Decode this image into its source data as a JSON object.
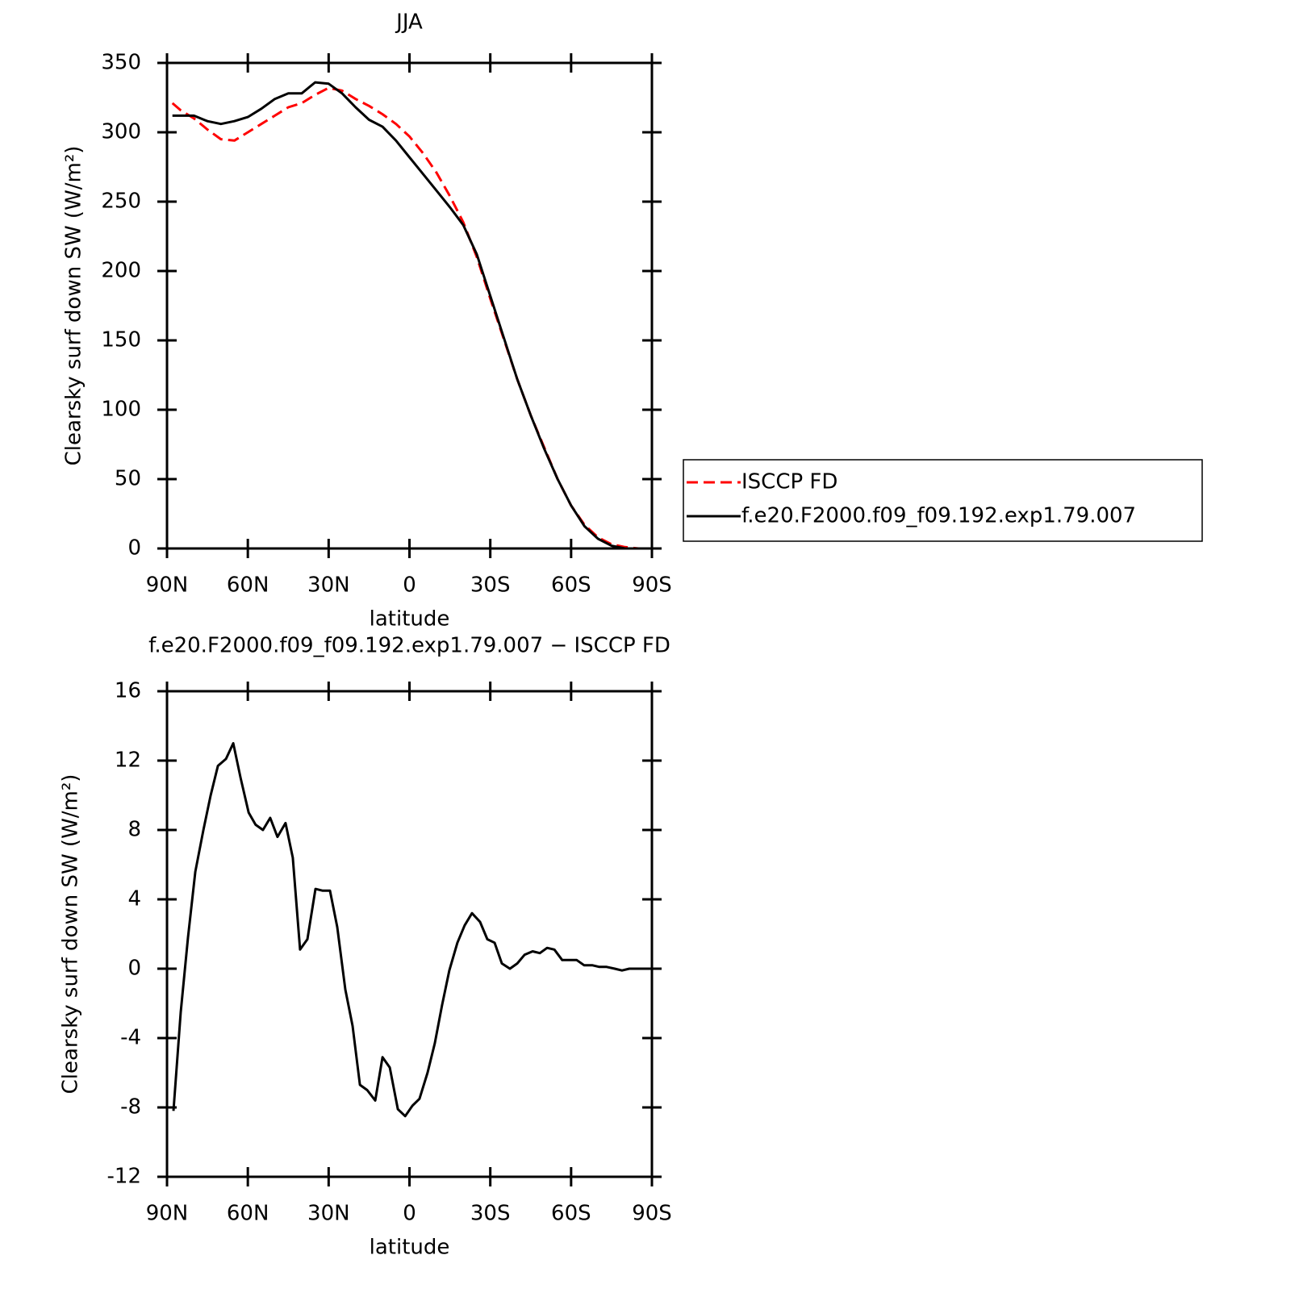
{
  "chart_data": [
    {
      "type": "line",
      "title": "JJA",
      "x_label": "latitude",
      "y_label": "Clearsky surf down SW (W/m²)",
      "x": [
        88,
        85,
        80,
        75,
        70,
        65,
        60,
        55,
        50,
        45,
        40,
        35,
        30,
        25,
        20,
        15,
        10,
        5,
        0,
        -5,
        -10,
        -15,
        -20,
        -25,
        -30,
        -35,
        -40,
        -45,
        -50,
        -55,
        -60,
        -65,
        -70,
        -75,
        -80,
        -85,
        -88
      ],
      "series": [
        {
          "name": "ISCCP FD",
          "color": "#ff0000",
          "style": "dashed",
          "values": [
            321,
            316,
            310,
            302,
            295,
            294,
            300,
            306,
            312,
            318,
            321,
            327,
            332,
            330,
            324,
            319,
            313,
            306,
            297,
            285,
            271,
            254,
            235,
            210,
            180,
            151,
            122,
            96,
            73,
            50,
            31,
            17,
            8,
            3,
            1,
            0,
            0
          ]
        },
        {
          "name": "f.e20.F2000.f09_f09.192.exp1.79.007",
          "color": "#000000",
          "style": "solid",
          "values": [
            312,
            312,
            312,
            308,
            306,
            308,
            311,
            317,
            324,
            328,
            328,
            336,
            335,
            328,
            318,
            309,
            304,
            294,
            282,
            270,
            258,
            246,
            233,
            212,
            182,
            152,
            122,
            96,
            72,
            50,
            31,
            16,
            7,
            2,
            0,
            0,
            0
          ]
        }
      ],
      "xlim": [
        90,
        -90
      ],
      "xticks": [
        {
          "value": 90,
          "label": "90N"
        },
        {
          "value": 60,
          "label": "60N"
        },
        {
          "value": 30,
          "label": "30N"
        },
        0,
        {
          "value": -30,
          "label": "30S"
        },
        {
          "value": -60,
          "label": "60S"
        },
        {
          "value": -90,
          "label": "90S"
        }
      ],
      "ylim": [
        0,
        350
      ],
      "yticks": [
        0,
        50,
        100,
        150,
        200,
        250,
        300,
        350
      ],
      "legend": "right"
    },
    {
      "type": "line",
      "title": "f.e20.F2000.f09_f09.192.exp1.79.007 − ISCCP FD",
      "x_label": "latitude",
      "y_label": "Clearsky surf down SW (W/m²)",
      "x": [
        87.6,
        84.9,
        82.2,
        79.5,
        76.5,
        73.8,
        71.1,
        68.1,
        65.4,
        62.7,
        59.7,
        57.1,
        54.4,
        51.7,
        49,
        46,
        43.3,
        40.6,
        37.9,
        34.9,
        32.2,
        29.5,
        26.8,
        23.8,
        21.1,
        18.4,
        15.7,
        12.7,
        10,
        7.3,
        4.3,
        1.6,
        -1.1,
        -3.7,
        -6.7,
        -9.4,
        -12.1,
        -14.8,
        -17.8,
        -20.5,
        -23.2,
        -26.2,
        -28.9,
        -31.6,
        -34.3,
        -37.3,
        -40,
        -42.7,
        -45.7,
        -48.4,
        -51.1,
        -53.8,
        -56.7,
        -59.4,
        -62.1,
        -64.8,
        -67.8,
        -70.5,
        -73.2,
        -76.2,
        -78.9,
        -81.6,
        -84.3,
        -87.3
      ],
      "values": [
        -8.2,
        -2.5,
        1.8,
        5.6,
        8,
        10,
        11.7,
        12.1,
        13,
        11,
        9,
        8.3,
        8,
        8.7,
        7.6,
        8.4,
        6.4,
        1.1,
        1.7,
        4.6,
        4.5,
        4.5,
        2.4,
        -1.2,
        -3.3,
        -6.7,
        -7,
        -7.6,
        -5.1,
        -5.7,
        -8.1,
        -8.5,
        -7.9,
        -7.5,
        -6,
        -4.3,
        -2.1,
        -0.1,
        1.5,
        2.5,
        3.2,
        2.7,
        1.7,
        1.5,
        0.3,
        0,
        0.3,
        0.8,
        1,
        0.9,
        1.2,
        1.1,
        0.5,
        0.5,
        0.5,
        0.2,
        0.2,
        0.1,
        0.1,
        0,
        -0.1,
        0,
        0,
        0
      ],
      "color": "#000000",
      "xlim": [
        90,
        -90
      ],
      "xticks": [
        {
          "value": 90,
          "label": "90N"
        },
        {
          "value": 60,
          "label": "60N"
        },
        {
          "value": 30,
          "label": "30N"
        },
        0,
        {
          "value": -30,
          "label": "30S"
        },
        {
          "value": -60,
          "label": "60S"
        },
        {
          "value": -90,
          "label": "90S"
        }
      ],
      "ylim": [
        -12,
        16
      ],
      "yticks": [
        -12,
        -8,
        -4,
        0,
        4,
        8,
        12,
        16
      ]
    }
  ]
}
